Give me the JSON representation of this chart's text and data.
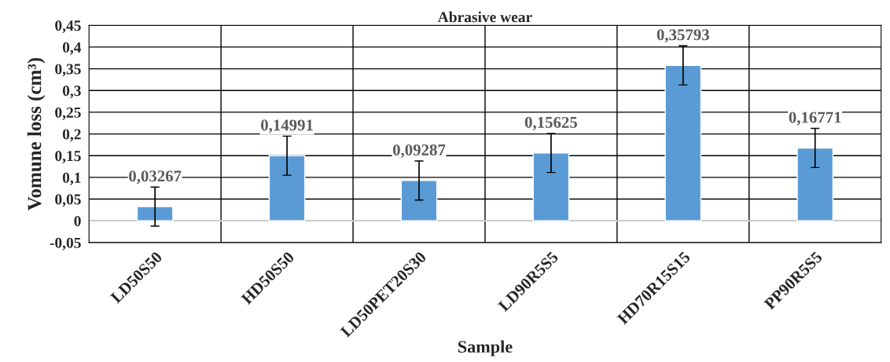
{
  "chart_data": {
    "type": "bar",
    "title": "Abrasive wear",
    "xlabel": "Sample",
    "ylabel": "Vomune loss (cm³)",
    "categories": [
      "LD50S50",
      "HD50S50",
      "LD50PET20S30",
      "LD90R5S5",
      "HD70R15S15",
      "PP90R5S5"
    ],
    "values": [
      0.03267,
      0.14991,
      0.09287,
      0.15625,
      0.35793,
      0.16771
    ],
    "value_labels": [
      "0,03267",
      "0,14991",
      "0,09287",
      "0,15625",
      "0,35793",
      "0,16771"
    ],
    "errors": [
      0.045,
      0.045,
      0.045,
      0.045,
      0.045,
      0.045
    ],
    "color": "#5b9bd5",
    "ylim": [
      -0.05,
      0.45
    ],
    "yticks": [
      {
        "value": -0.05,
        "label": "-0,05"
      },
      {
        "value": 0,
        "label": "0"
      },
      {
        "value": 0.05,
        "label": "0,05"
      },
      {
        "value": 0.1,
        "label": "0,1"
      },
      {
        "value": 0.15,
        "label": "0,15"
      },
      {
        "value": 0.2,
        "label": "0,2"
      },
      {
        "value": 0.25,
        "label": "0,25"
      },
      {
        "value": 0.3,
        "label": "0,3"
      },
      {
        "value": 0.35,
        "label": "0,35"
      },
      {
        "value": 0.4,
        "label": "0,4"
      },
      {
        "value": 0.45,
        "label": "0,45"
      }
    ],
    "grid": true
  }
}
